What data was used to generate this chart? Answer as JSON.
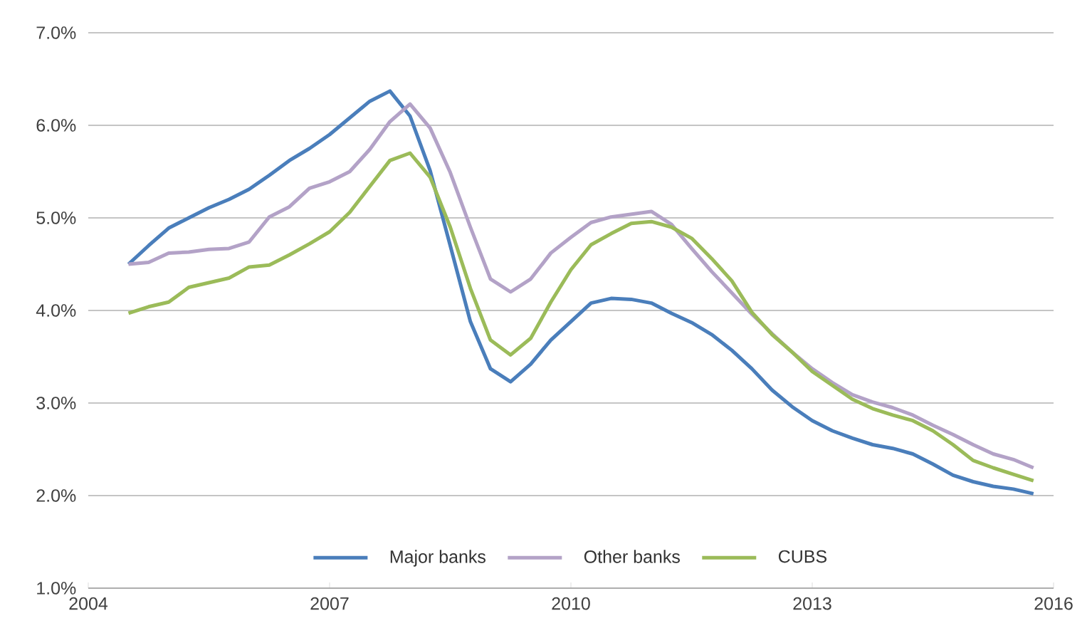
{
  "chart_data": {
    "type": "line",
    "x": [
      2004.5,
      2004.75,
      2005,
      2005.25,
      2005.5,
      2005.75,
      2006,
      2006.25,
      2006.5,
      2006.75,
      2007,
      2007.25,
      2007.5,
      2007.75,
      2008,
      2008.25,
      2008.5,
      2008.75,
      2009,
      2009.25,
      2009.5,
      2009.75,
      2010,
      2010.25,
      2010.5,
      2010.75,
      2011,
      2011.25,
      2011.5,
      2011.75,
      2012,
      2012.25,
      2012.5,
      2012.75,
      2013,
      2013.25,
      2013.5,
      2013.75,
      2014,
      2014.25,
      2014.5,
      2014.75,
      2015,
      2015.25,
      2015.5,
      2015.75
    ],
    "series": [
      {
        "name": "Major banks",
        "color": "#4a7ebb",
        "values": [
          4.5,
          4.7,
          4.89,
          5.0,
          5.11,
          5.2,
          5.31,
          5.46,
          5.62,
          5.75,
          5.9,
          6.08,
          6.26,
          6.37,
          6.1,
          5.51,
          4.7,
          3.88,
          3.37,
          3.23,
          3.42,
          3.68,
          3.88,
          4.08,
          4.13,
          4.12,
          4.08,
          3.97,
          3.87,
          3.74,
          3.57,
          3.37,
          3.14,
          2.96,
          2.81,
          2.7,
          2.62,
          2.55,
          2.51,
          2.45,
          2.34,
          2.22,
          2.15,
          2.1,
          2.07,
          2.02
        ]
      },
      {
        "name": "Other banks",
        "color": "#b3a2c7",
        "values": [
          4.5,
          4.52,
          4.62,
          4.63,
          4.66,
          4.67,
          4.74,
          5.01,
          5.12,
          5.32,
          5.39,
          5.5,
          5.74,
          6.04,
          6.23,
          5.97,
          5.49,
          4.9,
          4.34,
          4.2,
          4.34,
          4.62,
          4.79,
          4.95,
          5.01,
          5.04,
          5.07,
          4.93,
          4.67,
          4.42,
          4.19,
          3.96,
          3.75,
          3.55,
          3.37,
          3.22,
          3.09,
          3.01,
          2.95,
          2.87,
          2.76,
          2.66,
          2.55,
          2.45,
          2.39,
          2.3
        ]
      },
      {
        "name": "CUBS",
        "color": "#9bbb59",
        "values": [
          3.97,
          4.04,
          4.09,
          4.25,
          4.3,
          4.35,
          4.47,
          4.49,
          4.6,
          4.72,
          4.85,
          5.06,
          5.34,
          5.62,
          5.7,
          5.44,
          4.9,
          4.24,
          3.68,
          3.52,
          3.7,
          4.09,
          4.44,
          4.71,
          4.83,
          4.94,
          4.96,
          4.9,
          4.78,
          4.56,
          4.32,
          3.98,
          3.74,
          3.55,
          3.34,
          3.19,
          3.04,
          2.94,
          2.87,
          2.81,
          2.7,
          2.55,
          2.38,
          2.3,
          2.23,
          2.16
        ]
      }
    ],
    "xlim": [
      2004,
      2016
    ],
    "xticks": [
      2004,
      2007,
      2010,
      2013,
      2016
    ],
    "ylim": [
      1,
      7
    ],
    "yticks": [
      {
        "value": 1,
        "label": "1.0%"
      },
      {
        "value": 2,
        "label": "2.0%"
      },
      {
        "value": 3,
        "label": "3.0%"
      },
      {
        "value": 4,
        "label": "4.0%"
      },
      {
        "value": 5,
        "label": "5.0%"
      },
      {
        "value": 6,
        "label": "6.0%"
      },
      {
        "value": 7,
        "label": "7.0%"
      }
    ],
    "grid": "y",
    "legend": "bottom",
    "marker": "none",
    "line_style": "solid"
  }
}
